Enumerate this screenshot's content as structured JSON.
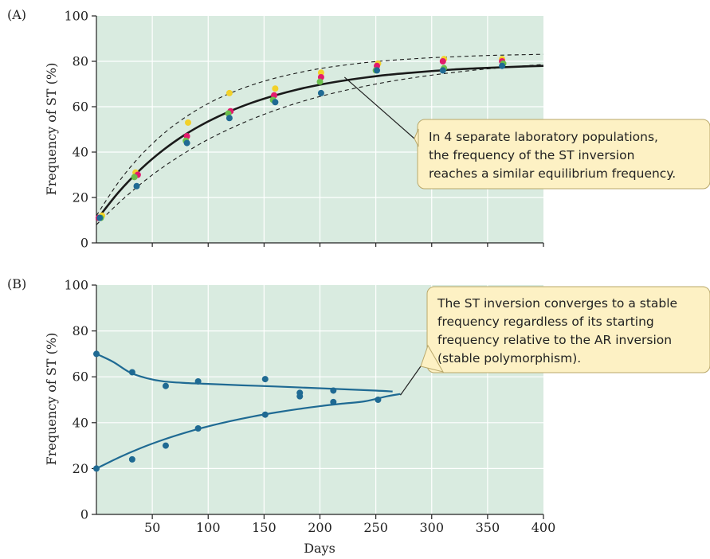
{
  "colors": {
    "plot_bg": "#d9ebe0",
    "grid": "#ffffff",
    "fit_line_a": "#1a1a1a",
    "fit_line_b": "#1f6a93",
    "callout_bg": "#fdf1c4",
    "callout_border": "#b9a86a"
  },
  "chart_data": [
    {
      "type": "scatter",
      "panel_label": "(A)",
      "title": "",
      "xlabel": "",
      "ylabel": "Frequency of ST (%)",
      "xlim": [
        0,
        400
      ],
      "ylim": [
        0,
        100
      ],
      "yticks": [
        "0",
        "20",
        "40",
        "60",
        "80",
        "100"
      ],
      "grid": true,
      "series": [
        {
          "color": "#f2d12a",
          "x": [
            5,
            35,
            82,
            119,
            160,
            201,
            252,
            311,
            363
          ],
          "y": [
            12,
            31,
            53,
            66,
            68,
            75,
            79,
            81,
            81
          ]
        },
        {
          "color": "#e31b6c",
          "x": [
            2,
            37,
            81,
            120,
            159,
            201,
            251,
            310,
            363
          ],
          "y": [
            11,
            30,
            47,
            58,
            65,
            73,
            78,
            80,
            80
          ]
        },
        {
          "color": "#6bbf4b",
          "x": [
            4,
            34,
            80,
            118,
            158,
            200,
            250,
            311,
            364
          ],
          "y": [
            11,
            29,
            45,
            57,
            63,
            71,
            76,
            77,
            79
          ]
        },
        {
          "color": "#1f6a93",
          "x": [
            3,
            36,
            81,
            119,
            160,
            201,
            251,
            310,
            363
          ],
          "y": [
            11,
            25,
            44,
            55,
            62,
            66,
            76,
            76,
            78
          ]
        }
      ],
      "fit_curves": [
        {
          "style": "solid",
          "x": [
            0,
            20,
            40,
            60,
            80,
            100,
            120,
            140,
            160,
            180,
            200,
            220,
            240,
            260,
            280,
            300,
            320,
            340,
            360,
            380,
            400
          ],
          "y": [
            10,
            22.4,
            32.6,
            41.0,
            47.9,
            53.5,
            58.1,
            61.9,
            65.0,
            67.6,
            69.7,
            71.4,
            72.8,
            74.0,
            74.9,
            75.7,
            76.4,
            76.9,
            77.3,
            77.7,
            78.0
          ]
        },
        {
          "style": "dashed",
          "x": [
            0,
            20,
            40,
            60,
            80,
            100,
            120,
            140,
            160,
            180,
            200,
            220,
            240,
            260,
            280,
            300,
            320,
            340,
            360,
            380,
            400
          ],
          "y": [
            12,
            26.9,
            38.7,
            48.1,
            55.5,
            61.4,
            66.0,
            69.7,
            72.6,
            74.9,
            76.8,
            78.2,
            79.4,
            80.3,
            81.0,
            81.6,
            82.0,
            82.4,
            82.7,
            82.9,
            83.1
          ]
        },
        {
          "style": "dashed",
          "x": [
            0,
            20,
            40,
            60,
            80,
            100,
            120,
            140,
            160,
            180,
            200,
            220,
            240,
            260,
            280,
            300,
            320,
            340,
            360,
            380,
            400
          ],
          "y": [
            8,
            17.6,
            26.1,
            33.5,
            39.9,
            45.6,
            50.4,
            54.7,
            58.4,
            61.7,
            64.5,
            66.9,
            69.0,
            70.9,
            72.5,
            73.9,
            75.1,
            76.2,
            77.1,
            77.9,
            78.6
          ]
        }
      ],
      "callout": {
        "lines": [
          "In 4 separate laboratory populations,",
          "the frequency of the ST inversion",
          "reaches a similar equilibrium frequency."
        ],
        "pointer_to": [
          222,
          73
        ]
      }
    },
    {
      "type": "scatter",
      "panel_label": "(B)",
      "title": "",
      "xlabel": "Days",
      "ylabel": "Frequency of ST (%)",
      "xlim": [
        0,
        400
      ],
      "ylim": [
        0,
        100
      ],
      "xticks": [
        "50",
        "100",
        "150",
        "200",
        "250",
        "300",
        "350",
        "400"
      ],
      "yticks": [
        "0",
        "20",
        "40",
        "60",
        "80",
        "100"
      ],
      "grid": true,
      "series": [
        {
          "color": "#1f6a93",
          "x": [
            0,
            32,
            62,
            91,
            151,
            182,
            212,
            252
          ],
          "y": [
            70,
            62,
            56,
            58,
            59,
            53,
            54,
            50
          ]
        },
        {
          "color": "#1f6a93",
          "x": [
            0,
            32,
            62,
            91,
            151,
            182,
            212
          ],
          "y": [
            20,
            24,
            30,
            37.5,
            43.5,
            51.5,
            49
          ]
        }
      ],
      "fit_curves": [
        {
          "style": "solid",
          "x": [
            0,
            15,
            30,
            45,
            60,
            80,
            100,
            130,
            160,
            190,
            220,
            250,
            265
          ],
          "y": [
            70,
            66.5,
            61.9,
            59.4,
            58.0,
            57.3,
            56.9,
            56.3,
            55.8,
            55.2,
            54.6,
            54.0,
            53.6
          ]
        },
        {
          "style": "solid",
          "x": [
            0,
            20,
            40,
            60,
            80,
            100,
            120,
            140,
            160,
            180,
            200,
            220,
            240,
            260,
            272
          ],
          "y": [
            20,
            24.8,
            29.0,
            32.6,
            35.7,
            38.4,
            40.7,
            42.7,
            44.4,
            45.9,
            47.2,
            48.3,
            49.3,
            51.5,
            52.5
          ]
        }
      ],
      "callout": {
        "lines": [
          "The ST inversion converges to a stable",
          "frequency regardless of its starting",
          "frequency relative to the AR inversion",
          "(stable polymorphism)."
        ],
        "pointer_to": [
          272,
          52
        ]
      }
    }
  ]
}
